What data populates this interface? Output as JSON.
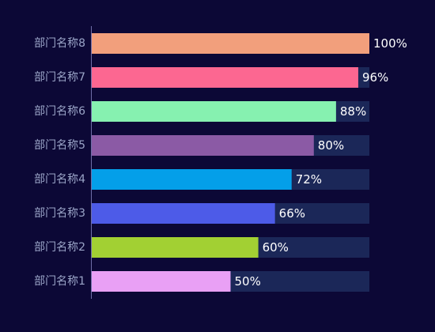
{
  "chart_data": {
    "type": "bar",
    "orientation": "horizontal",
    "categories": [
      "部门名称8",
      "部门名称7",
      "部门名称6",
      "部门名称5",
      "部门名称4",
      "部门名称3",
      "部门名称2",
      "部门名称1"
    ],
    "values": [
      100,
      96,
      88,
      80,
      72,
      66,
      60,
      50
    ],
    "value_labels": [
      "100%",
      "96%",
      "88%",
      "80%",
      "72%",
      "66%",
      "60%",
      "50%"
    ],
    "colors": [
      "#f29f7c",
      "#fc6791",
      "#86f1b0",
      "#8b5aa5",
      "#049fe9",
      "#4d5be8",
      "#a2d033",
      "#e9a0f5"
    ],
    "track_color": "#1b2758",
    "axis_color": "#6f6ea8",
    "background": "#0c0836",
    "xlim": [
      0,
      100
    ],
    "grid": false,
    "legend": "none",
    "title": "",
    "xlabel": "",
    "ylabel": ""
  }
}
